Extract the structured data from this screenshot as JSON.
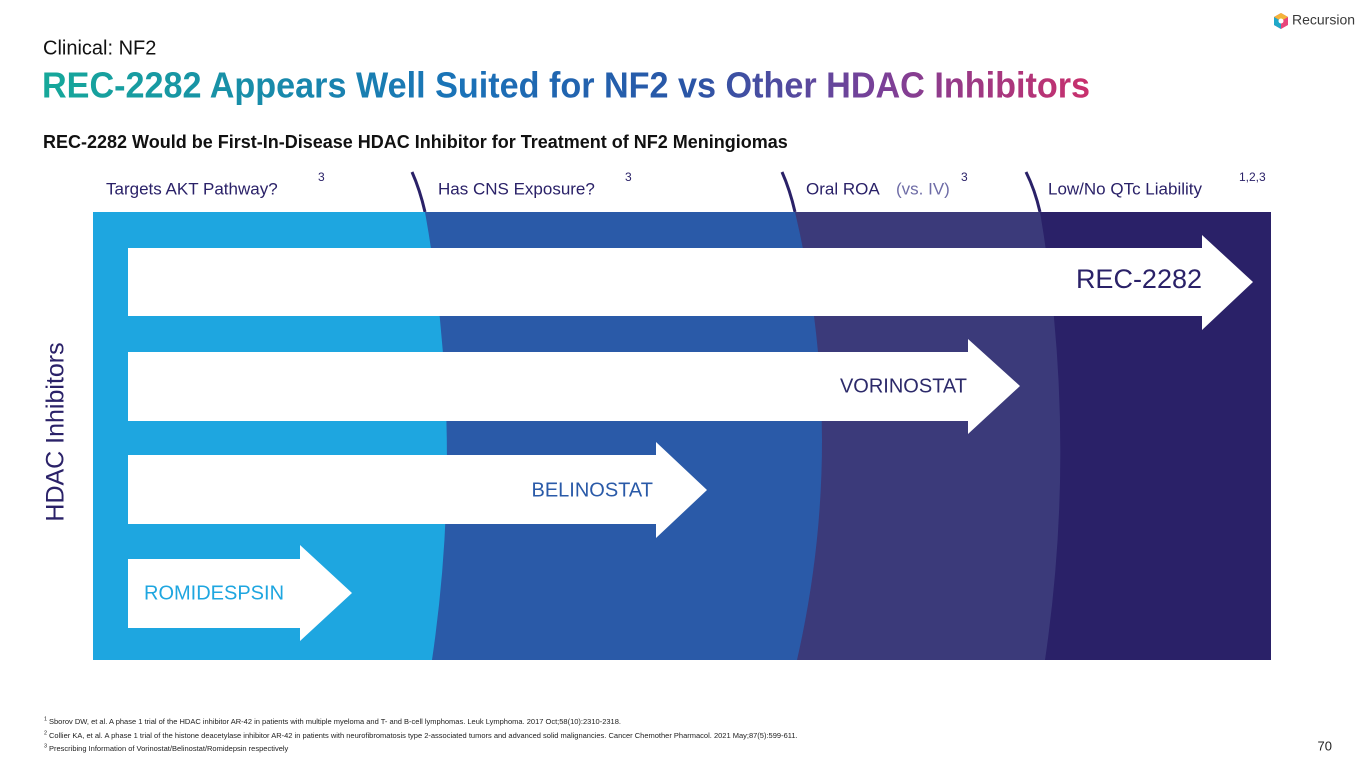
{
  "logo": "Recursion",
  "header": {
    "section": "Clinical: NF2",
    "title": "REC-2282 Appears Well Suited for NF2 vs Other HDAC Inhibitors",
    "subtitle": "REC-2282 Would be First-In-Disease HDAC Inhibitor for Treatment of NF2 Meningiomas"
  },
  "columns": [
    {
      "label": "Targets AKT Pathway?",
      "ref": "3"
    },
    {
      "label": "Has CNS Exposure?",
      "ref": "3"
    },
    {
      "label": "Oral ROA",
      "note": "(vs. IV)",
      "ref": "3"
    },
    {
      "label": "Low/No QTc Liability",
      "ref": "1,2,3"
    }
  ],
  "axis_label": "HDAC Inhibitors",
  "arrows": [
    "REC-2282",
    "VORINOSTAT",
    "BELINOSTAT",
    "ROMIDESPSIN"
  ],
  "footnotes": [
    {
      "ref": "1",
      "text": "Sborov DW, et al. A phase 1 trial of the HDAC inhibitor AR-42 in patients with multiple myeloma and T- and B-cell lymphomas. Leuk Lymphoma. 2017 Oct;58(10):2310-2318."
    },
    {
      "ref": "2",
      "text": "Collier KA, et al. A phase 1 trial of the histone deacetylase inhibitor AR-42 in patients with neurofibromatosis type 2-associated tumors and advanced solid malignancies. Cancer Chemother Pharmacol. 2021 May;87(5):599-611."
    },
    {
      "ref": "3",
      "text": "Prescribing Information of Vorinostat/Belinostat/Romidepsin respectively"
    }
  ],
  "page_number": "70"
}
